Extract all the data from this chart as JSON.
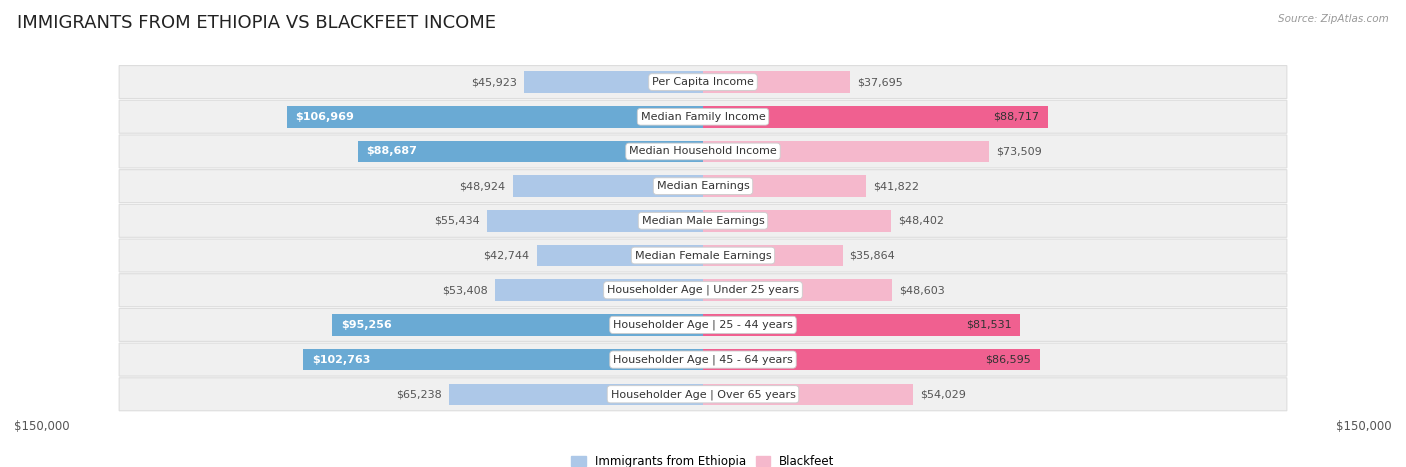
{
  "title": "IMMIGRANTS FROM ETHIOPIA VS BLACKFEET INCOME",
  "source": "Source: ZipAtlas.com",
  "categories": [
    "Per Capita Income",
    "Median Family Income",
    "Median Household Income",
    "Median Earnings",
    "Median Male Earnings",
    "Median Female Earnings",
    "Householder Age | Under 25 years",
    "Householder Age | 25 - 44 years",
    "Householder Age | 45 - 64 years",
    "Householder Age | Over 65 years"
  ],
  "ethiopia_values": [
    45923,
    106969,
    88687,
    48924,
    55434,
    42744,
    53408,
    95256,
    102763,
    65238
  ],
  "blackfeet_values": [
    37695,
    88717,
    73509,
    41822,
    48402,
    35864,
    48603,
    81531,
    86595,
    54029
  ],
  "ethiopia_color_light": "#adc8e8",
  "ethiopia_color_dark": "#6aaad4",
  "blackfeet_color_light": "#f5b8cc",
  "blackfeet_color_dark": "#f06090",
  "ethiopia_label": "Immigrants from Ethiopia",
  "blackfeet_label": "Blackfeet",
  "max_value": 150000,
  "x_label_left": "$150,000",
  "x_label_right": "$150,000",
  "bar_height": 0.62,
  "bg_color": "#ffffff",
  "row_bg": "#f0f0f0",
  "row_border": "#dddddd",
  "title_fontsize": 13,
  "label_fontsize": 8.5,
  "value_fontsize": 8,
  "category_fontsize": 8,
  "dark_threshold": 80000
}
